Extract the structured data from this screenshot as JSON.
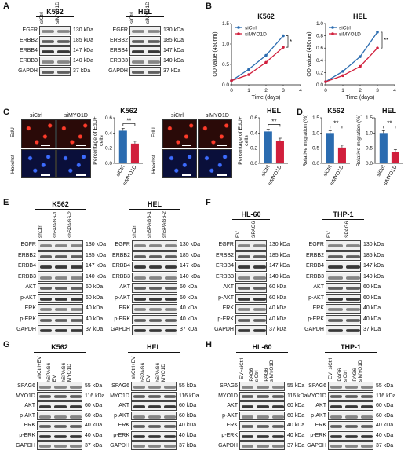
{
  "panels": {
    "A": {
      "label": "A",
      "blots": [
        {
          "title": "K562",
          "lanes": [
            "siCtrl",
            "siMYO1D"
          ],
          "rows": [
            {
              "name": "EGFR",
              "kda": "130 kDa"
            },
            {
              "name": "ERBB2",
              "kda": "185 kDa"
            },
            {
              "name": "ERBB4",
              "kda": "147 kDa"
            },
            {
              "name": "ERBB3",
              "kda": "140 kDa"
            },
            {
              "name": "GAPDH",
              "kda": "37 kDa"
            }
          ]
        },
        {
          "title": "HEL",
          "lanes": [
            "siCtrl",
            "siMYO1D"
          ],
          "rows": [
            {
              "name": "EGFR",
              "kda": "130 kDa"
            },
            {
              "name": "ERBB2",
              "kda": "185 kDa"
            },
            {
              "name": "ERBB4",
              "kda": "147 kDa"
            },
            {
              "name": "ERBB3",
              "kda": "140 kDa"
            },
            {
              "name": "GAPDH",
              "kda": "37 kDa"
            }
          ]
        }
      ]
    },
    "B": {
      "label": "B"
    },
    "C": {
      "label": "C",
      "stain_top": "EdU",
      "stain_bottom": "Hoechst",
      "k562_cols": [
        "siCtrl",
        "siMYO1D"
      ],
      "hel_cols": [
        "siCtrl",
        "siMYO1D"
      ]
    },
    "D": {
      "label": "D"
    },
    "E": {
      "label": "E",
      "blots": [
        {
          "title": "K562",
          "lanes": [
            "shCtrl",
            "shSPAG6-1",
            "shSPAG6-2"
          ],
          "rows": [
            {
              "name": "EGFR",
              "kda": "130 kDa"
            },
            {
              "name": "ERBB2",
              "kda": "185 kDa"
            },
            {
              "name": "ERBB4",
              "kda": "147 kDa"
            },
            {
              "name": "ERBB3",
              "kda": "140 kDa"
            },
            {
              "name": "AKT",
              "kda": "60 kDa"
            },
            {
              "name": "p-AKT",
              "kda": "60 kDa"
            },
            {
              "name": "ERK",
              "kda": "40 kDa"
            },
            {
              "name": "p-ERK",
              "kda": "40 kDa"
            },
            {
              "name": "GAPDH",
              "kda": "37 kDa"
            }
          ]
        },
        {
          "title": "HEL",
          "lanes": [
            "shCtrl",
            "shSPAG6-1",
            "shSPAG6-2"
          ],
          "rows": [
            {
              "name": "EGFR",
              "kda": "130 kDa"
            },
            {
              "name": "ERBB2",
              "kda": "185 kDa"
            },
            {
              "name": "ERBB4",
              "kda": "147 kDa"
            },
            {
              "name": "ERBB3",
              "kda": "140 kDa"
            },
            {
              "name": "AKT",
              "kda": "60 kDa"
            },
            {
              "name": "p-AKT",
              "kda": "60 kDa"
            },
            {
              "name": "ERK",
              "kda": "40 kDa"
            },
            {
              "name": "p-ERK",
              "kda": "40 kDa"
            },
            {
              "name": "GAPDH",
              "kda": "37 kDa"
            }
          ]
        }
      ]
    },
    "F": {
      "label": "F",
      "blots": [
        {
          "title": "HL-60",
          "lanes": [
            "EV",
            "SPAG6"
          ],
          "rows": [
            {
              "name": "EGFR",
              "kda": "130 kDa"
            },
            {
              "name": "ERBB2",
              "kda": "185 kDa"
            },
            {
              "name": "ERBB4",
              "kda": "147 kDa"
            },
            {
              "name": "ERBB3",
              "kda": "140 kDa"
            },
            {
              "name": "AKT",
              "kda": "60 kDa"
            },
            {
              "name": "p-AKT",
              "kda": "60 kDa"
            },
            {
              "name": "ERK",
              "kda": "40 kDa"
            },
            {
              "name": "p-ERK",
              "kda": "40 kDa"
            },
            {
              "name": "GAPDH",
              "kda": "37 kDa"
            }
          ]
        },
        {
          "title": "THP-1",
          "lanes": [
            "EV",
            "SPAG6"
          ],
          "rows": [
            {
              "name": "EGFR",
              "kda": "130 kDa"
            },
            {
              "name": "ERBB2",
              "kda": "185 kDa"
            },
            {
              "name": "ERBB4",
              "kda": "147 kDa"
            },
            {
              "name": "ERBB3",
              "kda": "140 kDa"
            },
            {
              "name": "AKT",
              "kda": "60 kDa"
            },
            {
              "name": "p-AKT",
              "kda": "60 kDa"
            },
            {
              "name": "ERK",
              "kda": "40 kDa"
            },
            {
              "name": "p-ERK",
              "kda": "40 kDa"
            },
            {
              "name": "GAPDH",
              "kda": "37 kDa"
            }
          ]
        }
      ]
    },
    "G": {
      "label": "G",
      "blots": [
        {
          "title": "K562",
          "lanes": [
            "shCtrl+EV",
            "shSPAG6\n+EV",
            "shSPAG6\n+MYO1D"
          ],
          "rows": [
            {
              "name": "SPAG6",
              "kda": "55 kDa"
            },
            {
              "name": "MYO1D",
              "kda": "116 kDa"
            },
            {
              "name": "AKT",
              "kda": "60 kDa"
            },
            {
              "name": "p-AKT",
              "kda": "60 kDa"
            },
            {
              "name": "ERK",
              "kda": "40 kDa"
            },
            {
              "name": "p-ERK",
              "kda": "40 kDa"
            },
            {
              "name": "GAPDH",
              "kda": "37 kDa"
            }
          ]
        },
        {
          "title": "HEL",
          "lanes": [
            "shCtrl+EV",
            "shSPAG6\n+EV",
            "shSPAG6\n+MYO1D"
          ],
          "rows": [
            {
              "name": "SPAG6",
              "kda": "55 kDa"
            },
            {
              "name": "MYO1D",
              "kda": "116 kDa"
            },
            {
              "name": "AKT",
              "kda": "60 kDa"
            },
            {
              "name": "p-AKT",
              "kda": "60 kDa"
            },
            {
              "name": "ERK",
              "kda": "40 kDa"
            },
            {
              "name": "p-ERK",
              "kda": "40 kDa"
            },
            {
              "name": "GAPDH",
              "kda": "37 kDa"
            }
          ]
        }
      ]
    },
    "H": {
      "label": "H",
      "blots": [
        {
          "title": "HL-60",
          "lanes": [
            "EV+siCtrl",
            "SPAG6\n+siCtrl",
            "SPAG6\n+siMYO1D"
          ],
          "rows": [
            {
              "name": "SPAG6",
              "kda": "55 kDa"
            },
            {
              "name": "MYO1D",
              "kda": "116 kDa"
            },
            {
              "name": "AKT",
              "kda": "60 kDa"
            },
            {
              "name": "p-AKT",
              "kda": "60 kDa"
            },
            {
              "name": "ERK",
              "kda": "40 kDa"
            },
            {
              "name": "p-ERK",
              "kda": "40 kDa"
            },
            {
              "name": "GAPDH",
              "kda": "37 kDa"
            }
          ]
        },
        {
          "title": "THP-1",
          "lanes": [
            "EV+siCtrl",
            "SPAG6\n+siCtrl",
            "SPAG6\n+siMYO1D"
          ],
          "rows": [
            {
              "name": "SPAG6",
              "kda": "55 kDa"
            },
            {
              "name": "MYO1D",
              "kda": "116 kDa"
            },
            {
              "name": "AKT",
              "kda": "60 kDa"
            },
            {
              "name": "p-AKT",
              "kda": "60 kDa"
            },
            {
              "name": "ERK",
              "kda": "40 kDa"
            },
            {
              "name": "p-ERK",
              "kda": "40 kDa"
            },
            {
              "name": "GAPDH",
              "kda": "37 kDa"
            }
          ]
        }
      ]
    }
  },
  "colors": {
    "ctrl": "#2b6cb0",
    "treat": "#d11f3c"
  },
  "chart_data": [
    {
      "id": "B-K562",
      "type": "line",
      "title": "K562",
      "xlabel": "Time (days)",
      "ylabel": "OD value (450nm)",
      "xlim": [
        0,
        4
      ],
      "ylim": [
        0,
        1.5
      ],
      "xticks": [
        "0",
        "1",
        "2",
        "3",
        "4"
      ],
      "yticks": [
        "0.0",
        "0.5",
        "1.0",
        "1.5"
      ],
      "x": [
        0,
        1,
        2,
        3
      ],
      "series": [
        {
          "name": "siCtrl",
          "values": [
            0.1,
            0.38,
            0.72,
            1.2
          ]
        },
        {
          "name": "siMYO1D",
          "values": [
            0.1,
            0.25,
            0.55,
            0.92
          ]
        }
      ],
      "significance": "*"
    },
    {
      "id": "B-HEL",
      "type": "line",
      "title": "HEL",
      "xlabel": "Time (days)",
      "ylabel": "OD value (450nm)",
      "xlim": [
        0,
        4
      ],
      "ylim": [
        0,
        1.0
      ],
      "xticks": [
        "0",
        "1",
        "2",
        "3",
        "4"
      ],
      "yticks": [
        "0.0",
        "0.2",
        "0.4",
        "0.6",
        "0.8",
        "1.0"
      ],
      "x": [
        0,
        1,
        2,
        3
      ],
      "series": [
        {
          "name": "siCtrl",
          "values": [
            0.05,
            0.22,
            0.46,
            0.86
          ]
        },
        {
          "name": "siMYO1D",
          "values": [
            0.05,
            0.15,
            0.3,
            0.6
          ]
        }
      ],
      "significance": "**"
    },
    {
      "id": "C-K562",
      "type": "bar",
      "title": "K562",
      "ylabel": "Percentage of EdU+\ncells",
      "categories": [
        "siCtrl",
        "siMYO1D"
      ],
      "values": [
        0.43,
        0.26
      ],
      "ylim": [
        0,
        0.6
      ],
      "yticks": [
        "0.0",
        "0.2",
        "0.4",
        "0.6"
      ],
      "significance": "**"
    },
    {
      "id": "C-HEL",
      "type": "bar",
      "title": "HEL",
      "ylabel": "Percentage of EdU+\ncells",
      "categories": [
        "siCtrl",
        "siMYO1D"
      ],
      "values": [
        0.42,
        0.3
      ],
      "ylim": [
        0,
        0.6
      ],
      "yticks": [
        "0.0",
        "0.2",
        "0.4",
        "0.6"
      ],
      "significance": "**"
    },
    {
      "id": "D-K562",
      "type": "bar",
      "title": "K562",
      "ylabel": "Relative migration (%)",
      "categories": [
        "siCtrl",
        "siMYO1D"
      ],
      "values": [
        1.0,
        0.52
      ],
      "ylim": [
        0,
        1.5
      ],
      "yticks": [
        "0.0",
        "0.5",
        "1.0",
        "1.5"
      ],
      "significance": "**"
    },
    {
      "id": "D-HEL",
      "type": "bar",
      "title": "HEL",
      "ylabel": "Relative migration (%)",
      "categories": [
        "siCtrl",
        "siMYO1D"
      ],
      "values": [
        1.0,
        0.38
      ],
      "ylim": [
        0,
        1.5
      ],
      "yticks": [
        "0.0",
        "0.5",
        "1.0",
        "1.5"
      ],
      "significance": "**"
    }
  ]
}
